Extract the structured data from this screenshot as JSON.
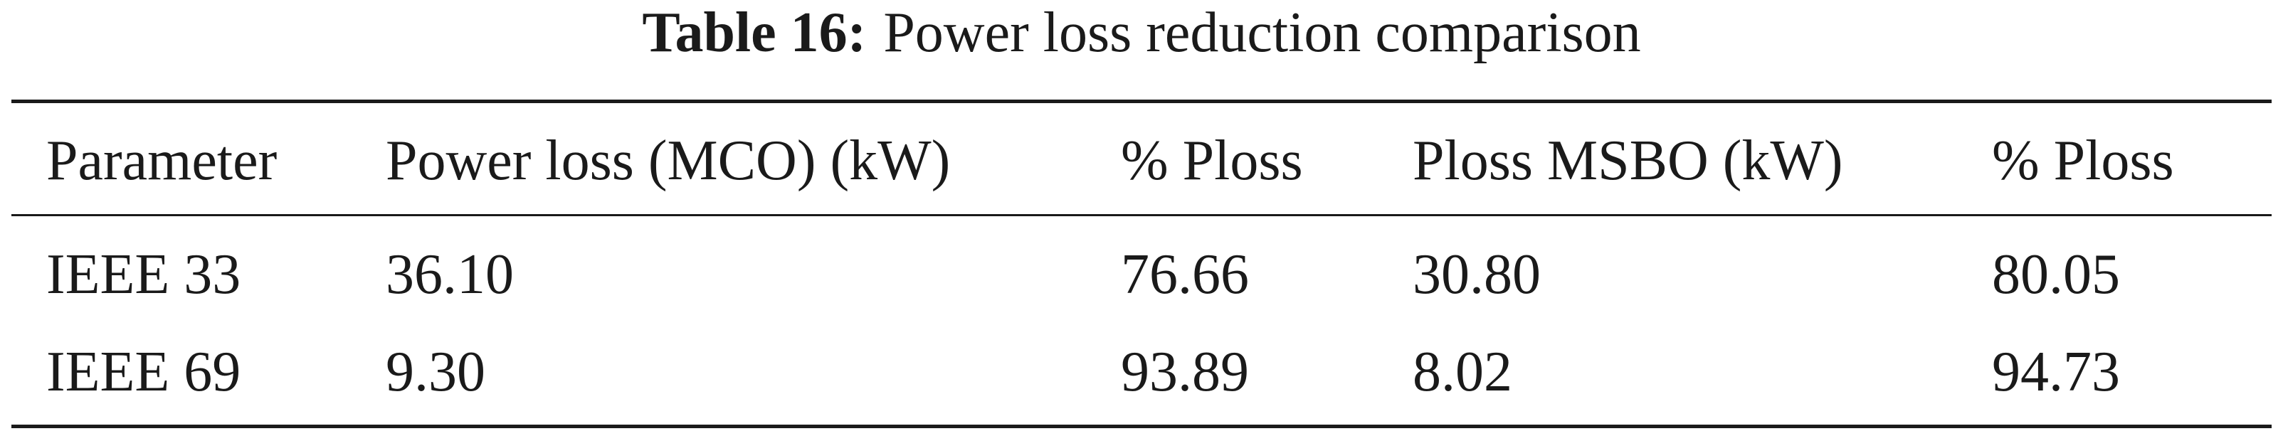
{
  "caption": {
    "label": "Table 16:",
    "text": "Power loss reduction comparison"
  },
  "table": {
    "header": [
      "Parameter",
      "Power loss (MCO) (kW)",
      "% Ploss",
      "Ploss MSBO (kW)",
      "% Ploss"
    ],
    "rows": [
      [
        "IEEE 33",
        "36.10",
        "76.66",
        "30.80",
        "80.05"
      ],
      [
        "IEEE 69",
        "9.30",
        "93.89",
        "8.02",
        "94.73"
      ]
    ]
  }
}
